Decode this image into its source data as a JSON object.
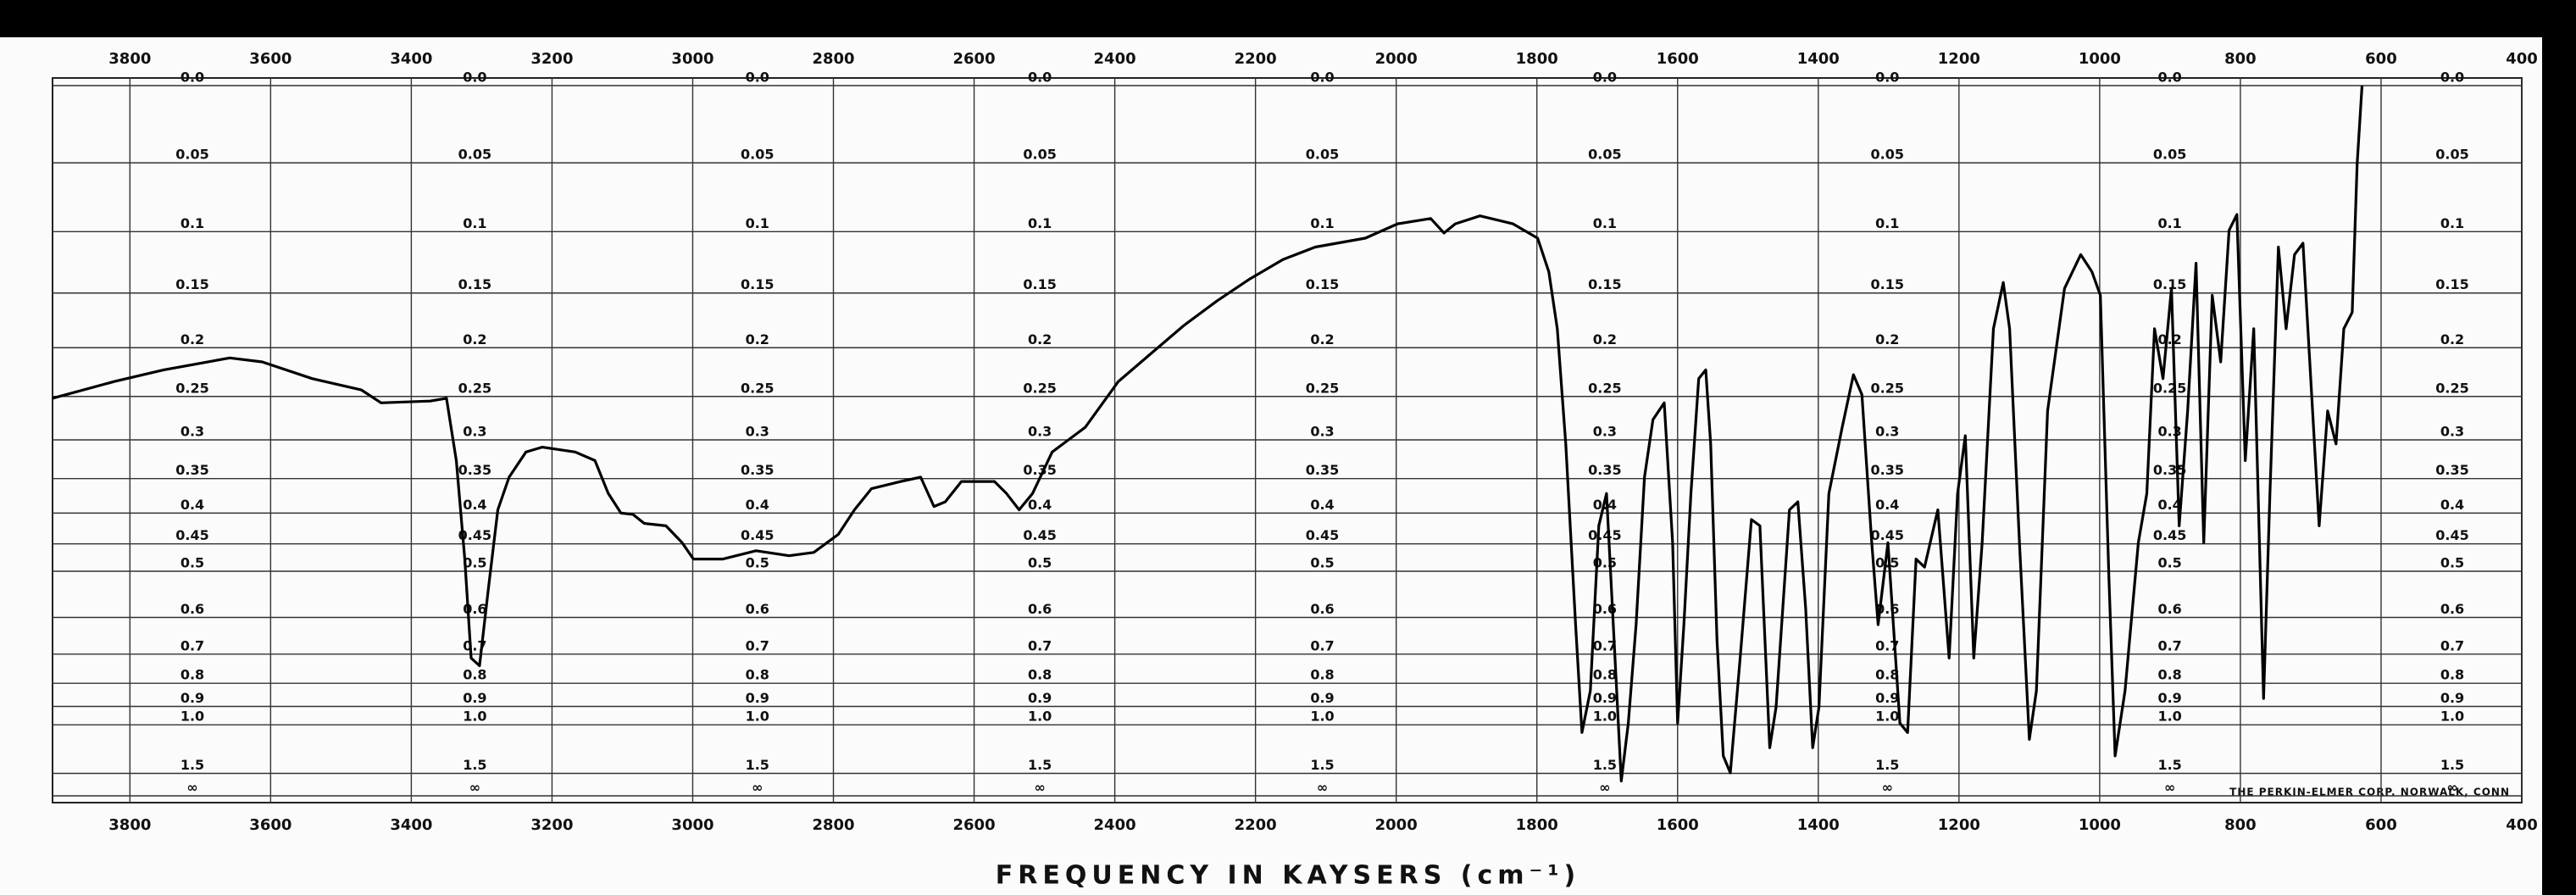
{
  "chart_data": {
    "type": "line",
    "x_label": "FREQUENCY IN KAYSERS (cm⁻¹)",
    "annotation": "THE PERKIN-ELMER CORP. NORWALK, CONN",
    "yscale": "absorbance",
    "color": "#000000",
    "grid": true,
    "xlim": [
      3910,
      400
    ],
    "xticks": [
      3800,
      3600,
      3400,
      3200,
      3000,
      2800,
      2600,
      2400,
      2200,
      2000,
      1800,
      1600,
      1400,
      1200,
      1000,
      800,
      600,
      400
    ],
    "ylim": [
      0,
      "Infinity"
    ],
    "yticks": [
      {
        "value": 0,
        "label": "0.0"
      },
      0.05,
      0.1,
      0.15,
      0.2,
      0.25,
      0.3,
      0.35,
      0.4,
      0.45,
      0.5,
      0.6,
      0.7,
      0.8,
      0.9,
      {
        "value": 1,
        "label": "1.0"
      },
      1.5,
      {
        "value": "Infinity",
        "label": "∞"
      }
    ],
    "x": [
      3910,
      3822,
      3752,
      3658,
      3612,
      3541,
      3471,
      3443,
      3373,
      3350,
      3336,
      3324,
      3315,
      3303,
      3291,
      3277,
      3261,
      3237,
      3214,
      3167,
      3139,
      3120,
      3102,
      3085,
      3069,
      3038,
      3015,
      2999,
      2957,
      2910,
      2863,
      2828,
      2793,
      2770,
      2746,
      2704,
      2676,
      2657,
      2641,
      2618,
      2571,
      2554,
      2536,
      2517,
      2489,
      2442,
      2395,
      2349,
      2302,
      2255,
      2208,
      2161,
      2115,
      2044,
      1998,
      1951,
      1932,
      1916,
      1881,
      1834,
      1799,
      1783,
      1771,
      1759,
      1745,
      1736,
      1724,
      1712,
      1701,
      1689,
      1680,
      1670,
      1659,
      1647,
      1635,
      1619,
      1607,
      1600,
      1591,
      1581,
      1570,
      1560,
      1553,
      1544,
      1535,
      1525,
      1511,
      1495,
      1483,
      1469,
      1460,
      1441,
      1429,
      1418,
      1408,
      1399,
      1385,
      1366,
      1350,
      1338,
      1324,
      1315,
      1301,
      1284,
      1273,
      1261,
      1249,
      1230,
      1214,
      1202,
      1191,
      1179,
      1167,
      1151,
      1137,
      1128,
      1114,
      1100,
      1090,
      1074,
      1050,
      1027,
      1011,
      999,
      987,
      978,
      964,
      945,
      933,
      922,
      910,
      898,
      887,
      875,
      863,
      852,
      840,
      828,
      816,
      805,
      793,
      781,
      767,
      758,
      746,
      735,
      723,
      711,
      688,
      676,
      664,
      653,
      641,
      634,
      627
    ],
    "values": [
      0.252,
      0.234,
      0.222,
      0.21,
      0.214,
      0.231,
      0.243,
      0.257,
      0.255,
      0.252,
      0.326,
      0.477,
      0.712,
      0.737,
      0.542,
      0.395,
      0.348,
      0.315,
      0.309,
      0.315,
      0.326,
      0.371,
      0.4,
      0.402,
      0.416,
      0.42,
      0.448,
      0.477,
      0.477,
      0.462,
      0.471,
      0.465,
      0.434,
      0.395,
      0.364,
      0.354,
      0.348,
      0.39,
      0.383,
      0.354,
      0.354,
      0.371,
      0.395,
      0.371,
      0.315,
      0.285,
      0.234,
      0.206,
      0.179,
      0.157,
      0.138,
      0.122,
      0.112,
      0.105,
      0.094,
      0.09,
      0.101,
      0.094,
      0.088,
      0.094,
      0.105,
      0.132,
      0.182,
      0.305,
      0.618,
      1.05,
      0.83,
      0.42,
      0.371,
      0.712,
      1.68,
      0.99,
      0.618,
      0.348,
      0.276,
      0.257,
      0.448,
      0.99,
      0.618,
      0.371,
      0.231,
      0.222,
      0.305,
      0.661,
      1.25,
      1.49,
      0.712,
      0.41,
      0.42,
      1.17,
      0.903,
      0.395,
      0.383,
      0.578,
      1.17,
      0.903,
      0.371,
      0.285,
      0.227,
      0.248,
      0.448,
      0.618,
      0.448,
      0.99,
      1.05,
      0.477,
      0.492,
      0.395,
      0.712,
      0.371,
      0.295,
      0.712,
      0.448,
      0.182,
      0.141,
      0.182,
      0.448,
      1.1,
      0.83,
      0.266,
      0.146,
      0.118,
      0.132,
      0.152,
      0.509,
      1.25,
      0.83,
      0.448,
      0.371,
      0.182,
      0.231,
      0.146,
      0.42,
      0.266,
      0.125,
      0.448,
      0.152,
      0.214,
      0.099,
      0.087,
      0.326,
      0.182,
      0.863,
      0.371,
      0.112,
      0.182,
      0.118,
      0.109,
      0.42,
      0.266,
      0.305,
      0.182,
      0.167,
      0.051,
      0
    ]
  }
}
